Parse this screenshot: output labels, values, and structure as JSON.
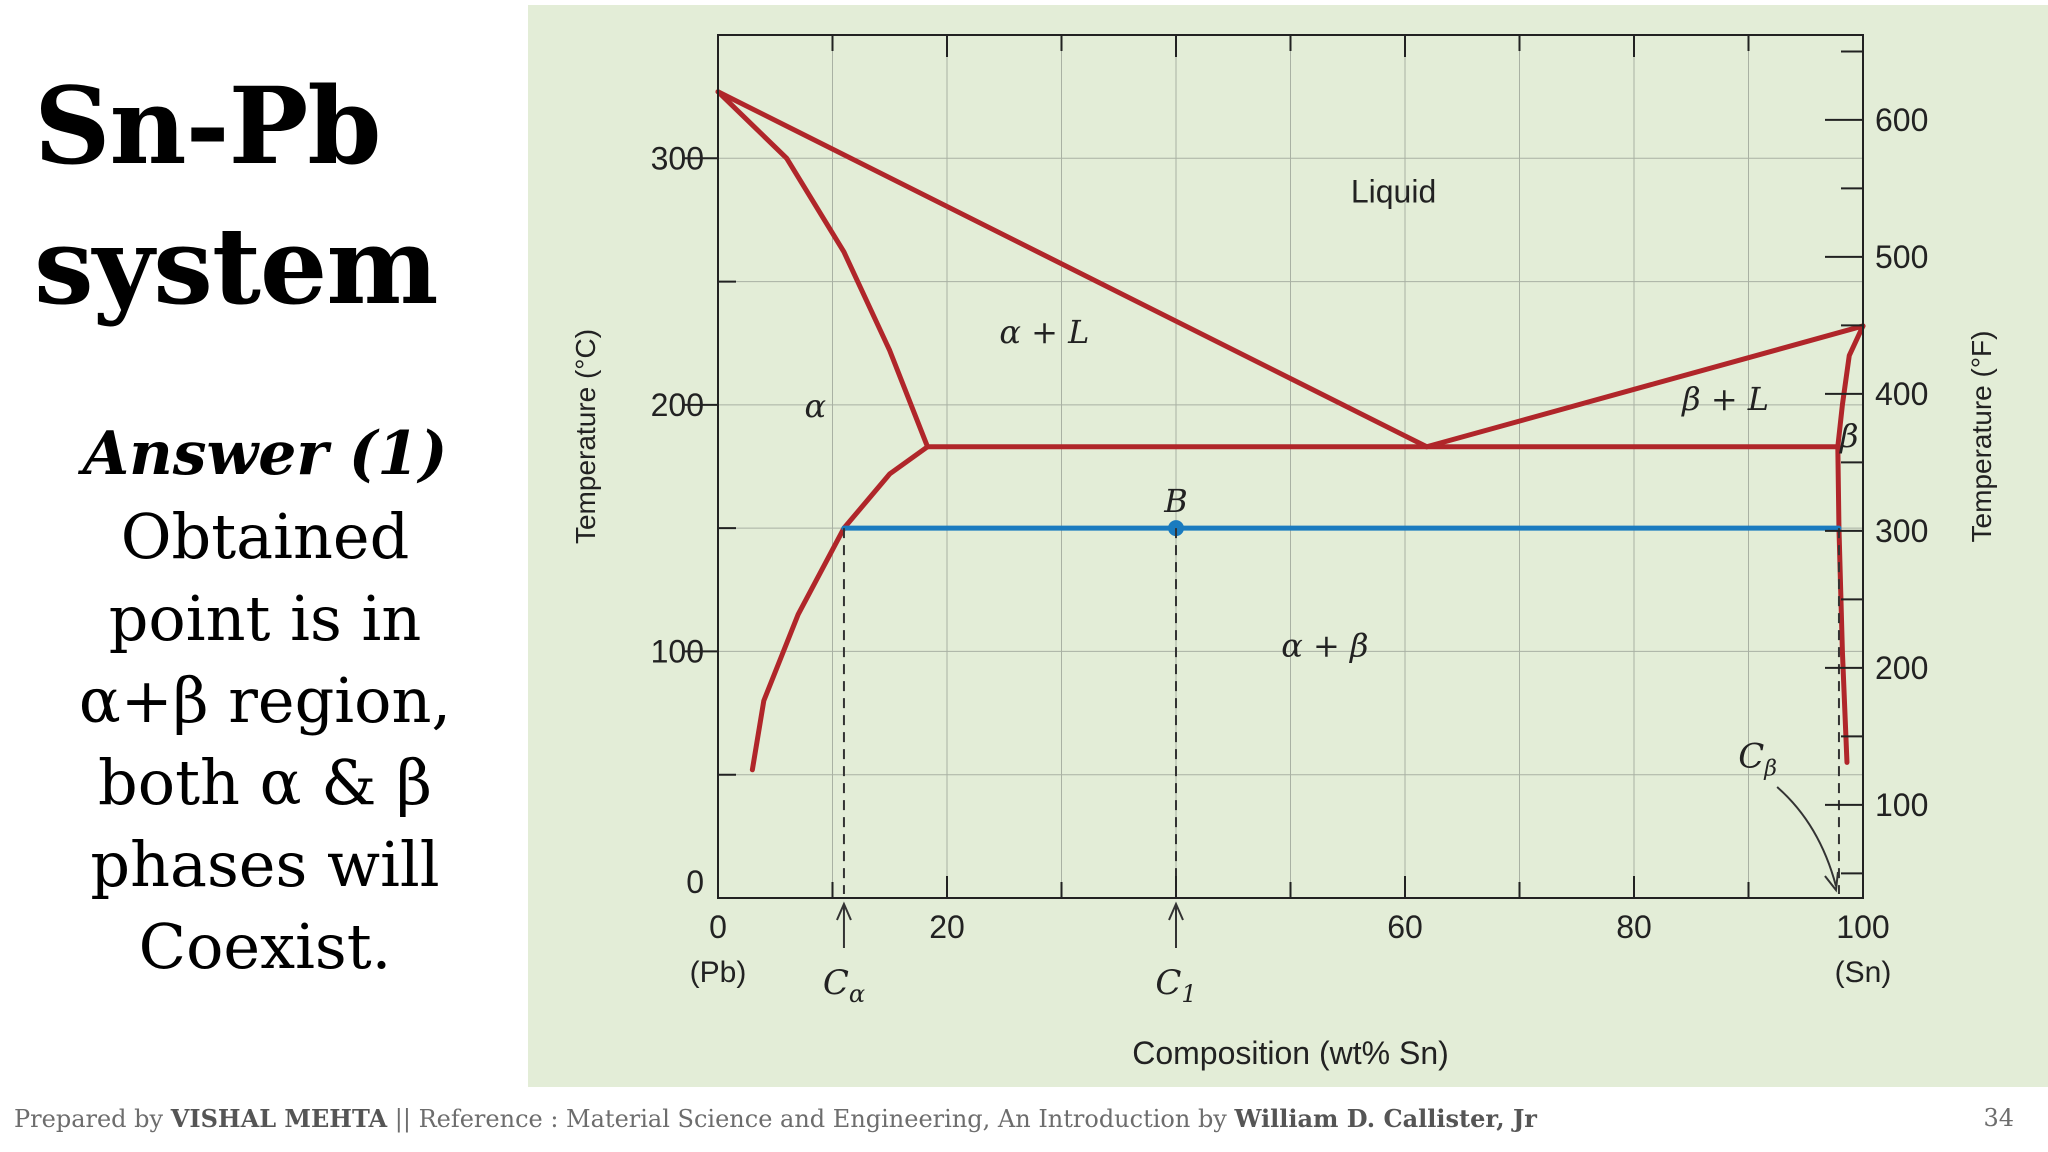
{
  "slide": {
    "title_line1": "Sn-Pb",
    "title_line2": "system",
    "answer_heading": "Answer (1)",
    "answer_lines": [
      "Obtained",
      "point is in",
      "α+β region,",
      "both α & β",
      "phases will",
      "Coexist."
    ],
    "footer_prefix": "Prepared by ",
    "footer_author": "VISHAL MEHTA",
    "footer_mid": " || Reference : Material Science and Engineering, An Introduction by ",
    "footer_ref_author": "William D. Callister, Jr",
    "page_number": "34"
  },
  "chart_data": {
    "type": "line",
    "xlabel": "Composition (wt% Sn)",
    "ylabel": "Temperature (°C)",
    "y2label": "Temperature (°F)",
    "xlim": [
      0,
      100
    ],
    "ylim": [
      0,
      350
    ],
    "y2lim": [
      32,
      662
    ],
    "x_ticks": [
      0,
      20,
      60,
      80,
      100
    ],
    "x_tick_labels": [
      "0",
      "20",
      "60",
      "80",
      "100"
    ],
    "x_end_labels": [
      "(Pb)",
      "(Sn)"
    ],
    "y_ticks": [
      0,
      100,
      200,
      300
    ],
    "y_tick_labels": [
      "0",
      "100",
      "200",
      "300"
    ],
    "y2_ticks": [
      100,
      200,
      300,
      400,
      500,
      600
    ],
    "y2_tick_labels": [
      "100",
      "200",
      "300",
      "400",
      "500",
      "600"
    ],
    "grid": true,
    "colors": {
      "phase_lines": "#b0262a",
      "tie_line": "#1a7bbf",
      "background": "#e3edd7"
    },
    "series": [
      {
        "values": [
          [
            0,
            327
          ],
          [
            61.9,
            183
          ]
        ]
      },
      {
        "values": [
          [
            61.9,
            183
          ],
          [
            100,
            232
          ]
        ]
      },
      {
        "values": [
          [
            0,
            327
          ],
          [
            6,
            300
          ],
          [
            11,
            262
          ],
          [
            15,
            222
          ],
          [
            18.3,
            183
          ]
        ]
      },
      {
        "values": [
          [
            18.3,
            183
          ],
          [
            15,
            172
          ],
          [
            11,
            150
          ],
          [
            7,
            115
          ],
          [
            4,
            80
          ],
          [
            3,
            52
          ]
        ]
      },
      {
        "values": [
          [
            18.3,
            183
          ],
          [
            97.8,
            183
          ]
        ]
      },
      {
        "values": [
          [
            100,
            232
          ],
          [
            98.8,
            220
          ],
          [
            98.2,
            200
          ],
          [
            97.8,
            183
          ]
        ]
      },
      {
        "values": [
          [
            97.8,
            183
          ],
          [
            97.9,
            150
          ],
          [
            98.2,
            100
          ],
          [
            98.6,
            55
          ]
        ]
      },
      {
        "values": [
          [
            11,
            150
          ],
          [
            97.9,
            150
          ]
        ]
      }
    ],
    "points": [
      {
        "label": "B",
        "x": 40,
        "y": 150
      }
    ],
    "guides": [
      {
        "label": "Cα",
        "x": 11,
        "y_top": 150
      },
      {
        "label": "C1",
        "x": 40,
        "y_top": 150
      },
      {
        "label": "Cβ",
        "x": 97.9,
        "y_top": 150
      }
    ],
    "region_labels": [
      {
        "text": "Liquid",
        "x": 59,
        "y": 282
      },
      {
        "text": "α + L",
        "x": 28.5,
        "y": 225
      },
      {
        "text": "α",
        "x": 8.5,
        "y": 195
      },
      {
        "text": "β + L",
        "x": 88,
        "y": 198
      },
      {
        "text": "β",
        "x": 98.8,
        "y": 183
      },
      {
        "text": "α + β",
        "x": 53,
        "y": 98
      }
    ]
  }
}
